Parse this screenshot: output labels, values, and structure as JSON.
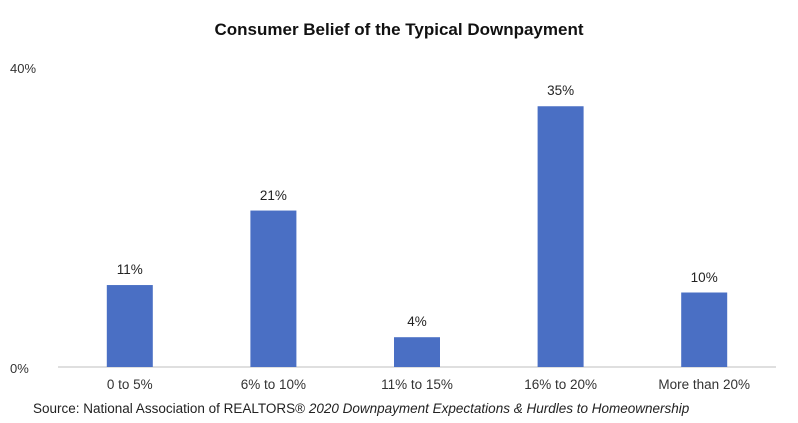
{
  "chart_data": {
    "type": "bar",
    "title": "Consumer Belief of the Typical Downpayment",
    "categories": [
      "0 to 5%",
      "6% to 10%",
      "11% to 15%",
      "16% to 20%",
      "More than 20%"
    ],
    "values": [
      11,
      21,
      4,
      35,
      10
    ],
    "data_labels": [
      "11%",
      "21%",
      "4%",
      "35%",
      "10%"
    ],
    "yticks": [
      "0%",
      "40%"
    ],
    "ylim": [
      0,
      40
    ],
    "grid": false,
    "bar_color": "#4a6fc4",
    "xlabel": "",
    "ylabel": ""
  },
  "source": {
    "prefix": "Source: National Association of REALTORS® ",
    "italic": "2020 Downpayment Expectations & Hurdles to Homeownership"
  }
}
